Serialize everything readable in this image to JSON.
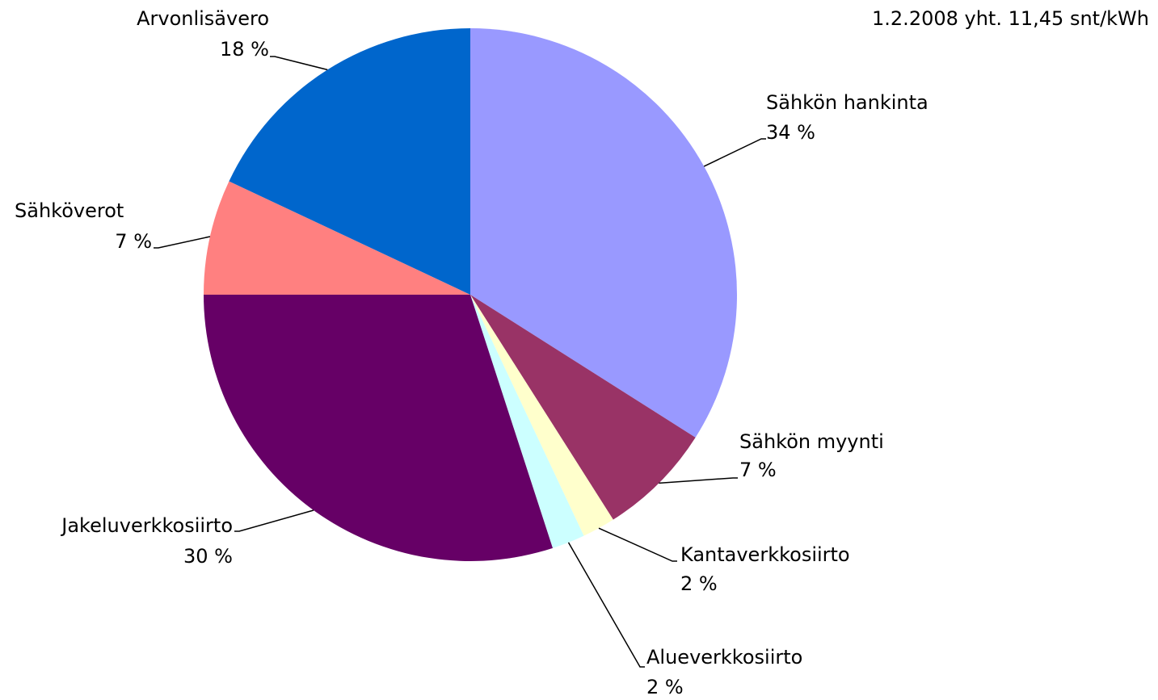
{
  "chart_data": {
    "type": "pie",
    "title": "1.2.2008 yht. 11,45 snt/kWh",
    "categories": [
      "Sähkön hankinta",
      "Sähkön myynti",
      "Kantaverkkosiirto",
      "Alueverkkosiirto",
      "Jakeluverkkosiirto",
      "Sähköverot",
      "Arvonlisävero"
    ],
    "values": [
      34,
      7,
      2,
      2,
      30,
      7,
      18
    ],
    "value_labels": [
      "34 %",
      "7 %",
      "2 %",
      "2 %",
      "30 %",
      "7 %",
      "18 %"
    ],
    "colors": [
      "#9999ff",
      "#993366",
      "#ffffcc",
      "#ccffff",
      "#660066",
      "#ff8080",
      "#0066cc"
    ]
  }
}
